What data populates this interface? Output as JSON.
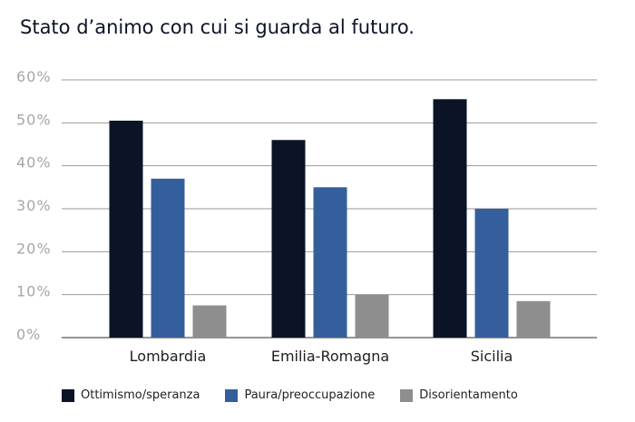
{
  "title": "Stato d’animo con cui si guarda al futuro.",
  "chart_data": {
    "type": "bar",
    "categories": [
      "Lombardia",
      "Emilia-Romagna",
      "Sicilia"
    ],
    "series": [
      {
        "name": "Ottimismo/speranza",
        "color": "#0b1326",
        "values": [
          50.5,
          46,
          55.5
        ]
      },
      {
        "name": "Paura/preoccupazione",
        "color": "#355f9c",
        "values": [
          37,
          35,
          30
        ]
      },
      {
        "name": "Disorientamento",
        "color": "#8e8e8e",
        "values": [
          7.5,
          10,
          8.5
        ]
      }
    ],
    "yticks": [
      "0%",
      "10%",
      "20%",
      "30%",
      "40%",
      "50%",
      "60%"
    ],
    "ylim": [
      0,
      60
    ],
    "grid": true,
    "legend_position": "bottom",
    "xlabel": "",
    "ylabel": ""
  }
}
